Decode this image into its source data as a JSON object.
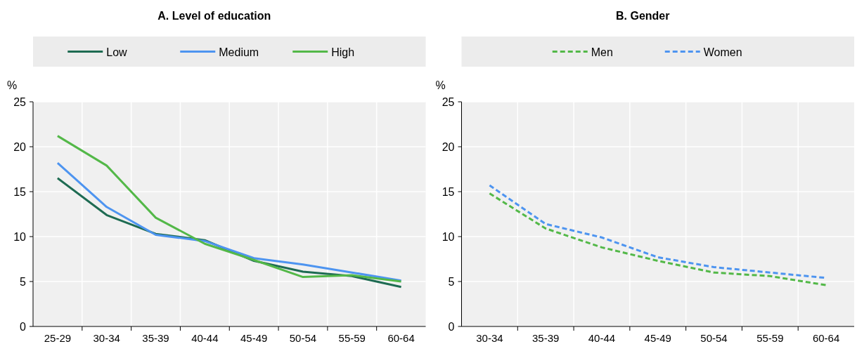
{
  "chart_data": [
    {
      "type": "line",
      "title": "A. Level of education",
      "ylabel": "%",
      "categories": [
        "25-29",
        "30-34",
        "35-39",
        "40-44",
        "45-49",
        "50-54",
        "55-59",
        "60-64"
      ],
      "ylim": [
        0,
        25
      ],
      "yticks": [
        0,
        5,
        10,
        15,
        20,
        25
      ],
      "grid": true,
      "legend": "top",
      "line_style": "solid",
      "series": [
        {
          "name": "Low",
          "color": "#1e6b52",
          "values": [
            16.5,
            12.4,
            10.3,
            9.6,
            7.3,
            6.1,
            5.6,
            4.4
          ]
        },
        {
          "name": "Medium",
          "color": "#4d94f0",
          "values": [
            18.2,
            13.3,
            10.2,
            9.5,
            7.6,
            6.9,
            6.0,
            5.1
          ]
        },
        {
          "name": "High",
          "color": "#53b848",
          "values": [
            21.2,
            17.9,
            12.1,
            9.2,
            7.4,
            5.5,
            5.7,
            5.0
          ]
        }
      ]
    },
    {
      "type": "line",
      "title": "B. Gender",
      "ylabel": "%",
      "categories": [
        "30-34",
        "35-39",
        "40-44",
        "45-49",
        "50-54",
        "55-59",
        "60-64"
      ],
      "ylim": [
        0,
        25
      ],
      "yticks": [
        0,
        5,
        10,
        15,
        20,
        25
      ],
      "grid": true,
      "legend": "top",
      "line_style": "dashed",
      "series": [
        {
          "name": "Men",
          "color": "#53b848",
          "values": [
            14.8,
            10.9,
            8.8,
            7.3,
            6.0,
            5.6,
            4.6
          ]
        },
        {
          "name": "Women",
          "color": "#4d94f0",
          "values": [
            15.7,
            11.4,
            9.9,
            7.7,
            6.6,
            6.0,
            5.4
          ]
        }
      ]
    }
  ]
}
